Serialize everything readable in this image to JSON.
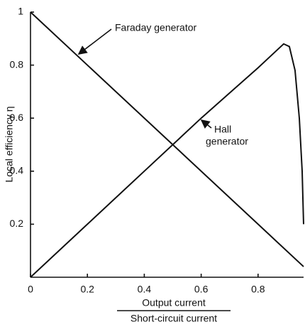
{
  "chart_data": {
    "type": "line",
    "ylabel": "Local efficiency η",
    "xlabel": {
      "numerator": "Output current",
      "denominator": "Short-circuit current"
    },
    "xlim": [
      0,
      0.96
    ],
    "ylim": [
      0,
      1
    ],
    "xticks": [
      0,
      0.2,
      0.4,
      0.6,
      0.8
    ],
    "yticks": [
      0.2,
      0.4,
      0.6,
      0.8,
      1
    ],
    "annotations": [
      {
        "lines": [
          "Faraday generator"
        ]
      },
      {
        "lines": [
          "Hall",
          "generator"
        ]
      }
    ],
    "series": [
      {
        "name": "Faraday generator",
        "color": "#111111",
        "x": [
          0,
          0.96
        ],
        "values": [
          1,
          0.04
        ]
      },
      {
        "name": "Hall generator",
        "color": "#111111",
        "x": [
          0,
          0.2,
          0.4,
          0.6,
          0.8,
          0.86,
          0.89,
          0.91,
          0.93,
          0.945,
          0.955,
          0.96
        ],
        "values": [
          0,
          0.2,
          0.4,
          0.6,
          0.79,
          0.85,
          0.88,
          0.87,
          0.78,
          0.6,
          0.4,
          0.2
        ]
      }
    ]
  }
}
